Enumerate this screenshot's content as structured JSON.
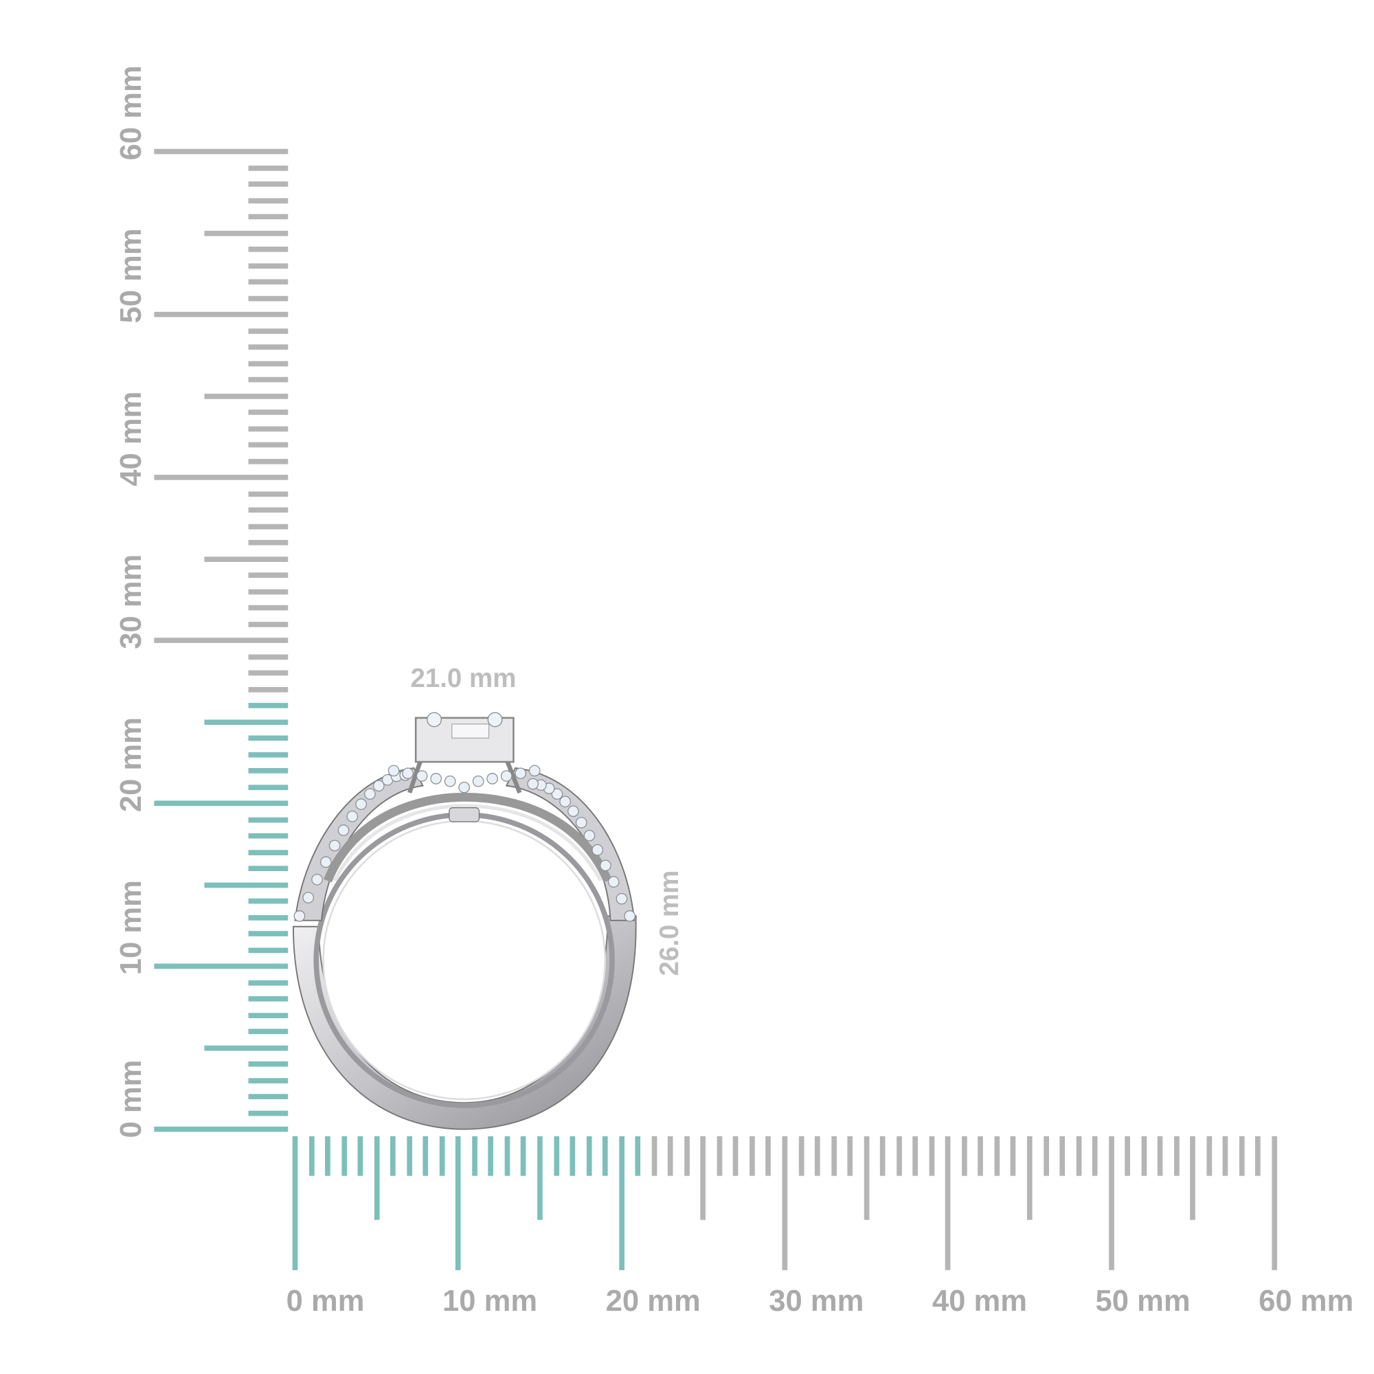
{
  "colors": {
    "highlight": "#7dbfba",
    "ruler": "#b5b5b5",
    "label": "#aaaaaa",
    "dimension": "#bdbdbd",
    "metal": "#c9c9cc"
  },
  "vertical_ruler": {
    "unit": "mm",
    "range_mm": [
      0,
      60
    ],
    "highlight_to_mm": 26,
    "labels": [
      "0 mm",
      "10 mm",
      "20 mm",
      "30 mm",
      "40 mm",
      "50 mm",
      "60 mm"
    ]
  },
  "horizontal_ruler": {
    "unit": "mm",
    "range_mm": [
      0,
      60
    ],
    "highlight_to_mm": 21,
    "labels": [
      "0 mm",
      "10 mm",
      "20 mm",
      "30 mm",
      "40 mm",
      "50 mm",
      "60 mm"
    ]
  },
  "dimensions": {
    "width": "21.0 mm",
    "height": "26.0 mm"
  },
  "product": {
    "icon": "ring-image"
  }
}
